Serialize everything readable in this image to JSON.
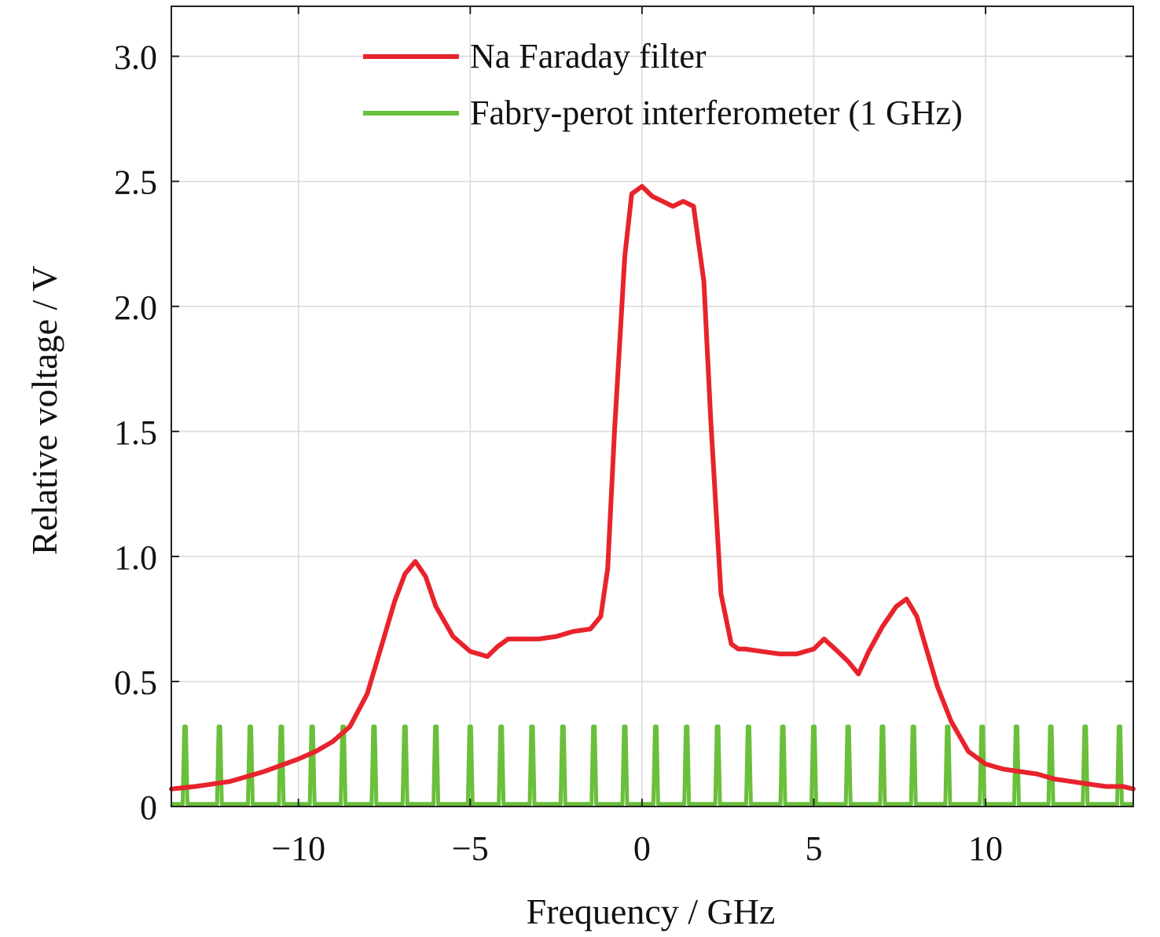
{
  "chart_data": {
    "type": "line",
    "title": "",
    "xlabel": "Frequency / GHz",
    "ylabel": "Relative voltage / V",
    "xlim": [
      -13.7,
      14.3
    ],
    "ylim": [
      0,
      3.2
    ],
    "x_ticks": [
      -10,
      -5,
      0,
      5,
      10
    ],
    "x_tick_labels": [
      "−10",
      "−5",
      "0",
      "5",
      "10"
    ],
    "y_ticks": [
      0,
      0.5,
      1.0,
      1.5,
      2.0,
      2.5,
      3.0
    ],
    "y_tick_labels": [
      "0",
      "0.5",
      "1.0",
      "1.5",
      "2.0",
      "2.5",
      "3.0"
    ],
    "grid": true,
    "legend_position": "top-right",
    "series": [
      {
        "name": "Na Faraday filter",
        "color": "#e8232c",
        "x": [
          -13.7,
          -13.0,
          -12.0,
          -11.0,
          -10.0,
          -9.5,
          -9.0,
          -8.5,
          -8.0,
          -7.5,
          -7.2,
          -6.9,
          -6.6,
          -6.3,
          -6.0,
          -5.5,
          -5.0,
          -4.5,
          -4.2,
          -3.9,
          -3.5,
          -3.0,
          -2.5,
          -2.0,
          -1.5,
          -1.2,
          -1.0,
          -0.8,
          -0.5,
          -0.3,
          0.0,
          0.3,
          0.6,
          0.9,
          1.2,
          1.5,
          1.8,
          2.0,
          2.3,
          2.6,
          2.8,
          3.0,
          3.5,
          4.0,
          4.5,
          5.0,
          5.3,
          5.7,
          6.0,
          6.3,
          6.6,
          7.0,
          7.4,
          7.7,
          8.0,
          8.3,
          8.6,
          9.0,
          9.5,
          10.0,
          10.5,
          11.0,
          11.5,
          12.0,
          12.5,
          13.0,
          13.5,
          14.0,
          14.3
        ],
        "y": [
          0.07,
          0.08,
          0.1,
          0.14,
          0.19,
          0.22,
          0.26,
          0.32,
          0.45,
          0.68,
          0.82,
          0.93,
          0.98,
          0.92,
          0.8,
          0.68,
          0.62,
          0.6,
          0.64,
          0.67,
          0.67,
          0.67,
          0.68,
          0.7,
          0.71,
          0.76,
          0.95,
          1.5,
          2.2,
          2.45,
          2.48,
          2.44,
          2.42,
          2.4,
          2.42,
          2.4,
          2.1,
          1.55,
          0.85,
          0.65,
          0.63,
          0.63,
          0.62,
          0.61,
          0.61,
          0.63,
          0.67,
          0.62,
          0.58,
          0.53,
          0.62,
          0.72,
          0.8,
          0.83,
          0.76,
          0.62,
          0.48,
          0.34,
          0.22,
          0.17,
          0.15,
          0.14,
          0.13,
          0.11,
          0.1,
          0.09,
          0.08,
          0.08,
          0.07
        ]
      },
      {
        "name": "Fabry-perot interferometer (1 GHz)",
        "color": "#6abf3b",
        "baseline": 0.01,
        "peak_height": 0.32,
        "peak_positions": [
          -13.3,
          -12.3,
          -11.4,
          -10.5,
          -9.6,
          -8.7,
          -7.8,
          -6.9,
          -6.0,
          -5.0,
          -4.1,
          -3.2,
          -2.3,
          -1.4,
          -0.5,
          0.4,
          1.3,
          2.2,
          3.1,
          4.1,
          5.0,
          6.0,
          7.0,
          7.9,
          8.9,
          9.9,
          10.9,
          11.9,
          12.9,
          13.9
        ]
      }
    ]
  }
}
